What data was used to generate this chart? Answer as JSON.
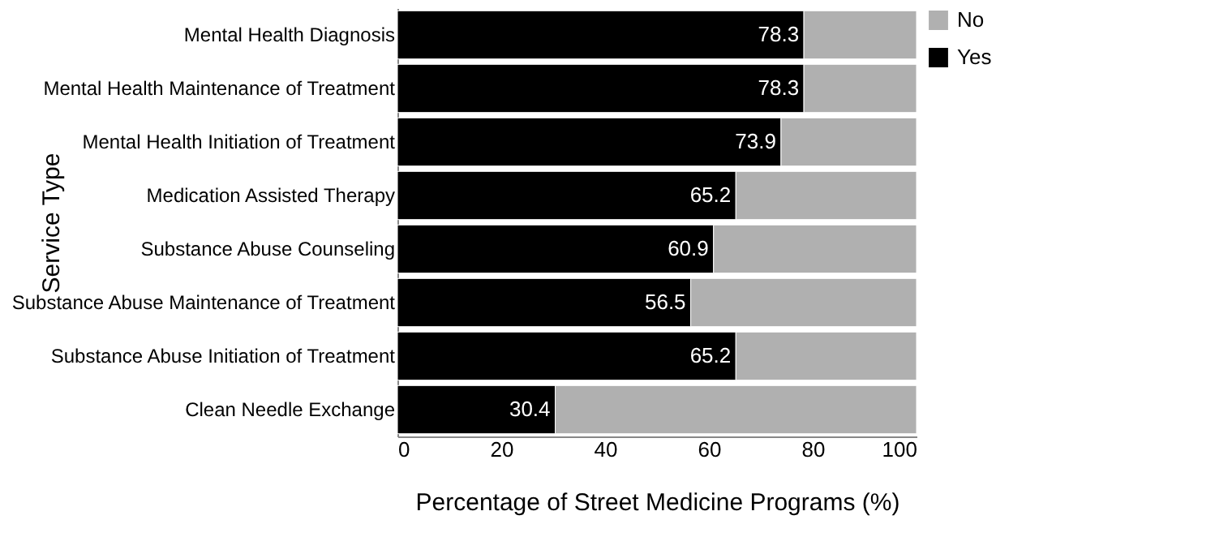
{
  "chart_data": {
    "type": "bar",
    "orientation": "horizontal",
    "stacked": true,
    "xlabel": "Percentage of Street Medicine Programs (%)",
    "ylabel": "Service Type",
    "categories": [
      "Mental Health Diagnosis",
      "Mental Health Maintenance of Treatment",
      "Mental Health Initiation of Treatment",
      "Medication Assisted Therapy",
      "Substance Abuse Counseling",
      "Substance Abuse Maintenance of Treatment",
      "Substance Abuse Initiation of Treatment",
      "Clean Needle Exchange"
    ],
    "series": [
      {
        "name": "Yes",
        "color": "#000000",
        "values": [
          78.3,
          78.3,
          73.9,
          65.2,
          60.9,
          56.5,
          65.2,
          30.4
        ],
        "value_labels": [
          "78.3",
          "78.3",
          "73.9",
          "65.2",
          "60.9",
          "56.5",
          "65.2",
          "30.4"
        ]
      },
      {
        "name": "No",
        "color": "#b0b0b0",
        "values": [
          21.7,
          21.7,
          26.1,
          34.8,
          39.1,
          43.5,
          34.8,
          69.6
        ]
      }
    ],
    "xlim": [
      0,
      100
    ],
    "xticks": [
      0,
      20,
      40,
      60,
      80,
      100
    ],
    "legend": "top right",
    "grid": false
  }
}
